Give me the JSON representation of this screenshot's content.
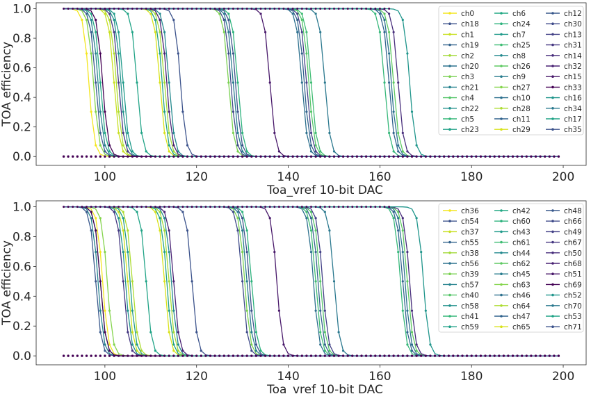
{
  "chart_data": [
    {
      "type": "line",
      "title": "",
      "xlabel": "Toa_vref 10-bit DAC",
      "ylabel": "TOA efficiency",
      "xlim": [
        85,
        205
      ],
      "ylim": [
        -0.06,
        1.04
      ],
      "xticks": [
        "100",
        "120",
        "140",
        "160",
        "180",
        "200"
      ],
      "xtick_values": [
        100,
        120,
        140,
        160,
        180,
        200
      ],
      "yticks": [
        "0.0",
        "0.2",
        "0.4",
        "0.6",
        "0.8",
        "1.0"
      ],
      "ytick_values": [
        0,
        0.2,
        0.4,
        0.6,
        0.8,
        1.0
      ],
      "grid": false,
      "legend_position": "top-right",
      "legend_columns": 3,
      "colormap": "viridis",
      "x_range": [
        91,
        199
      ],
      "step_groups_midpoint_dac": [
        98,
        103,
        113,
        128,
        144,
        162
      ],
      "series": [
        {
          "name": "ch0",
          "color": "#f4e61e",
          "threshold": 96.5
        },
        {
          "name": "ch18",
          "color": "#3b528b",
          "threshold": 128.5
        },
        {
          "name": "ch1",
          "color": "#c8e020",
          "threshold": 102.0
        },
        {
          "name": "ch19",
          "color": "#33638d",
          "threshold": 143.5
        },
        {
          "name": "ch2",
          "color": "#a2da37",
          "threshold": 113.0
        },
        {
          "name": "ch20",
          "color": "#2c728e",
          "threshold": 162.5
        },
        {
          "name": "ch3",
          "color": "#7ad151",
          "threshold": 127.0
        },
        {
          "name": "ch21",
          "color": "#26828e",
          "threshold": 98.5
        },
        {
          "name": "ch4",
          "color": "#54c568",
          "threshold": 144.5
        },
        {
          "name": "ch22",
          "color": "#21918c",
          "threshold": 103.5
        },
        {
          "name": "ch5",
          "color": "#35b779",
          "threshold": 161.0
        },
        {
          "name": "ch23",
          "color": "#1fa187",
          "threshold": 112.5
        },
        {
          "name": "ch6",
          "color": "#22a884",
          "threshold": 99.0
        },
        {
          "name": "ch24",
          "color": "#2db27d",
          "threshold": 129.0
        },
        {
          "name": "ch7",
          "color": "#1f9a8a",
          "threshold": 104.0
        },
        {
          "name": "ch25",
          "color": "#3fbc73",
          "threshold": 145.0
        },
        {
          "name": "ch8",
          "color": "#23898e",
          "threshold": 114.0
        },
        {
          "name": "ch26",
          "color": "#5ec962",
          "threshold": 163.0
        },
        {
          "name": "ch9",
          "color": "#287c8e",
          "threshold": 128.0
        },
        {
          "name": "ch27",
          "color": "#84d44b",
          "threshold": 97.5
        },
        {
          "name": "ch10",
          "color": "#2d708e",
          "threshold": 143.0
        },
        {
          "name": "ch28",
          "color": "#addc30",
          "threshold": 102.5
        },
        {
          "name": "ch11",
          "color": "#32648e",
          "threshold": 162.0
        },
        {
          "name": "ch29",
          "color": "#d8e219",
          "threshold": 112.0
        },
        {
          "name": "ch12",
          "color": "#38588c",
          "threshold": 98.0
        },
        {
          "name": "ch30",
          "color": "#3e4a89",
          "threshold": 127.5
        },
        {
          "name": "ch13",
          "color": "#424086",
          "threshold": 144.0
        },
        {
          "name": "ch31",
          "color": "#453781",
          "threshold": 103.0
        },
        {
          "name": "ch14",
          "color": "#472d7b",
          "threshold": 164.0
        },
        {
          "name": "ch32",
          "color": "#482173",
          "threshold": 113.5
        },
        {
          "name": "ch15",
          "color": "#48186a",
          "threshold": 136.0
        },
        {
          "name": "ch33",
          "color": "#440154",
          "threshold": 99.5
        },
        {
          "name": "ch16",
          "color": "#1f958b",
          "threshold": 166.5
        },
        {
          "name": "ch34",
          "color": "#2a788e",
          "threshold": 148.0
        },
        {
          "name": "ch17",
          "color": "#20a386",
          "threshold": 107.0
        },
        {
          "name": "ch35",
          "color": "#3b528b",
          "threshold": 116.5
        }
      ]
    },
    {
      "type": "line",
      "title": "",
      "xlabel": "Toa_vref 10-bit DAC",
      "ylabel": "TOA efficiency",
      "xlim": [
        85,
        205
      ],
      "ylim": [
        -0.06,
        1.04
      ],
      "xticks": [
        "100",
        "120",
        "140",
        "160",
        "180",
        "200"
      ],
      "xtick_values": [
        100,
        120,
        140,
        160,
        180,
        200
      ],
      "yticks": [
        "0.0",
        "0.2",
        "0.4",
        "0.6",
        "0.8",
        "1.0"
      ],
      "ytick_values": [
        0,
        0.2,
        0.4,
        0.6,
        0.8,
        1.0
      ],
      "grid": false,
      "legend_position": "top-right",
      "legend_columns": 3,
      "colormap": "viridis",
      "x_range": [
        91,
        199
      ],
      "step_groups_midpoint_dac": [
        99,
        105,
        114,
        131,
        146,
        166
      ],
      "series": [
        {
          "name": "ch36",
          "color": "#f4e61e",
          "threshold": 99.5
        },
        {
          "name": "ch54",
          "color": "#3b528b",
          "threshold": 131.5
        },
        {
          "name": "ch37",
          "color": "#c8e020",
          "threshold": 105.0
        },
        {
          "name": "ch55",
          "color": "#33638d",
          "threshold": 146.5
        },
        {
          "name": "ch38",
          "color": "#a2da37",
          "threshold": 114.0
        },
        {
          "name": "ch56",
          "color": "#2c728e",
          "threshold": 165.5
        },
        {
          "name": "ch39",
          "color": "#7ad151",
          "threshold": 130.5
        },
        {
          "name": "ch57",
          "color": "#26828e",
          "threshold": 98.5
        },
        {
          "name": "ch40",
          "color": "#54c568",
          "threshold": 147.0
        },
        {
          "name": "ch58",
          "color": "#21918c",
          "threshold": 104.5
        },
        {
          "name": "ch41",
          "color": "#35b779",
          "threshold": 164.5
        },
        {
          "name": "ch59",
          "color": "#1fa187",
          "threshold": 113.5
        },
        {
          "name": "ch42",
          "color": "#22a884",
          "threshold": 99.0
        },
        {
          "name": "ch60",
          "color": "#2db27d",
          "threshold": 132.0
        },
        {
          "name": "ch43",
          "color": "#1f9a8a",
          "threshold": 105.5
        },
        {
          "name": "ch61",
          "color": "#3fbc73",
          "threshold": 146.0
        },
        {
          "name": "ch44",
          "color": "#23898e",
          "threshold": 114.5
        },
        {
          "name": "ch62",
          "color": "#5ec962",
          "threshold": 166.0
        },
        {
          "name": "ch45",
          "color": "#287c8e",
          "threshold": 131.0
        },
        {
          "name": "ch63",
          "color": "#84d44b",
          "threshold": 100.5
        },
        {
          "name": "ch46",
          "color": "#2d708e",
          "threshold": 145.5
        },
        {
          "name": "ch64",
          "color": "#addc30",
          "threshold": 106.0
        },
        {
          "name": "ch47",
          "color": "#32648e",
          "threshold": 165.0
        },
        {
          "name": "ch65",
          "color": "#d8e219",
          "threshold": 113.0
        },
        {
          "name": "ch48",
          "color": "#38588c",
          "threshold": 98.0
        },
        {
          "name": "ch66",
          "color": "#3e4a89",
          "threshold": 130.0
        },
        {
          "name": "ch49",
          "color": "#424086",
          "threshold": 147.5
        },
        {
          "name": "ch67",
          "color": "#453781",
          "threshold": 104.0
        },
        {
          "name": "ch50",
          "color": "#472d7b",
          "threshold": 166.5
        },
        {
          "name": "ch68",
          "color": "#482173",
          "threshold": 115.0
        },
        {
          "name": "ch51",
          "color": "#48186a",
          "threshold": 137.5
        },
        {
          "name": "ch69",
          "color": "#440154",
          "threshold": 99.0
        },
        {
          "name": "ch52",
          "color": "#1f958b",
          "threshold": 169.5
        },
        {
          "name": "ch70",
          "color": "#2a788e",
          "threshold": 150.0
        },
        {
          "name": "ch53",
          "color": "#20a386",
          "threshold": 109.0
        },
        {
          "name": "ch71",
          "color": "#3b528b",
          "threshold": 119.0
        }
      ]
    }
  ]
}
